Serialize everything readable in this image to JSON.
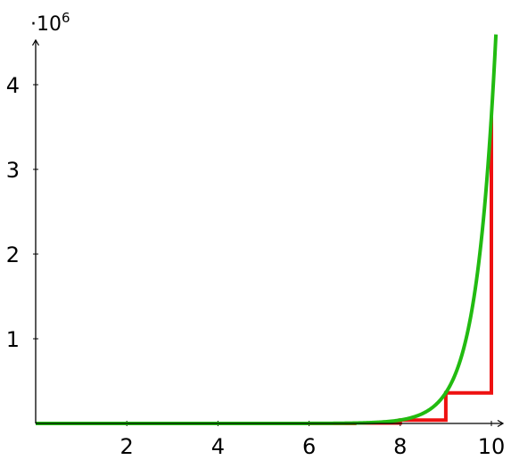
{
  "chart_data": {
    "type": "line",
    "title": "",
    "xlabel": "",
    "ylabel": "",
    "xlim": [
      0,
      10.1
    ],
    "ylim": [
      0,
      4.5
    ],
    "x_ticks": [
      2,
      4,
      6,
      8,
      10
    ],
    "y_ticks": [
      1,
      2,
      3,
      4
    ],
    "y_scale_label": "·10",
    "y_scale_exponent": "6",
    "grid": false,
    "axes": "arrows at left and bottom",
    "series": [
      {
        "color": "#ee1111",
        "style": "step",
        "points": [
          [
            0,
            0
          ],
          [
            1,
            0
          ],
          [
            2,
            0
          ],
          [
            3,
            0
          ],
          [
            4,
            0
          ],
          [
            5,
            0
          ],
          [
            6,
            0
          ],
          [
            7,
            0.005
          ],
          [
            8,
            0.04
          ],
          [
            9,
            0.36
          ],
          [
            10,
            3.63
          ]
        ]
      },
      {
        "color": "#22bb11",
        "style": "smooth",
        "function": "Gamma(x+1)/1e6",
        "x_range": [
          0,
          10.1
        ]
      }
    ]
  }
}
